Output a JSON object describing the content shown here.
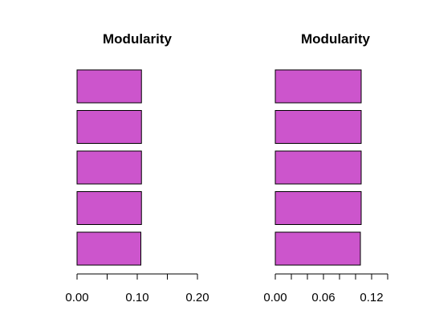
{
  "chart_data": [
    {
      "type": "bar",
      "orientation": "horizontal",
      "title": "Modularity",
      "values": [
        0.107,
        0.107,
        0.107,
        0.107,
        0.106
      ],
      "xlim": [
        0,
        0.2
      ],
      "ticks": [
        0,
        0.05,
        0.1,
        0.15,
        0.2
      ],
      "tick_labels": [
        "0.00",
        "",
        "0.10",
        "",
        "0.20"
      ],
      "bar_color": "#CC55CC",
      "grid": false
    },
    {
      "type": "bar",
      "orientation": "horizontal",
      "title": "Modularity",
      "values": [
        0.107,
        0.107,
        0.107,
        0.107,
        0.106
      ],
      "xlim": [
        0,
        0.14
      ],
      "ticks": [
        0,
        0.02,
        0.04,
        0.06,
        0.08,
        0.1,
        0.12,
        0.14
      ],
      "tick_labels": [
        "0.00",
        "",
        "",
        "0.06",
        "",
        "",
        "0.12",
        ""
      ],
      "bar_color": "#CC55CC",
      "grid": false
    }
  ]
}
